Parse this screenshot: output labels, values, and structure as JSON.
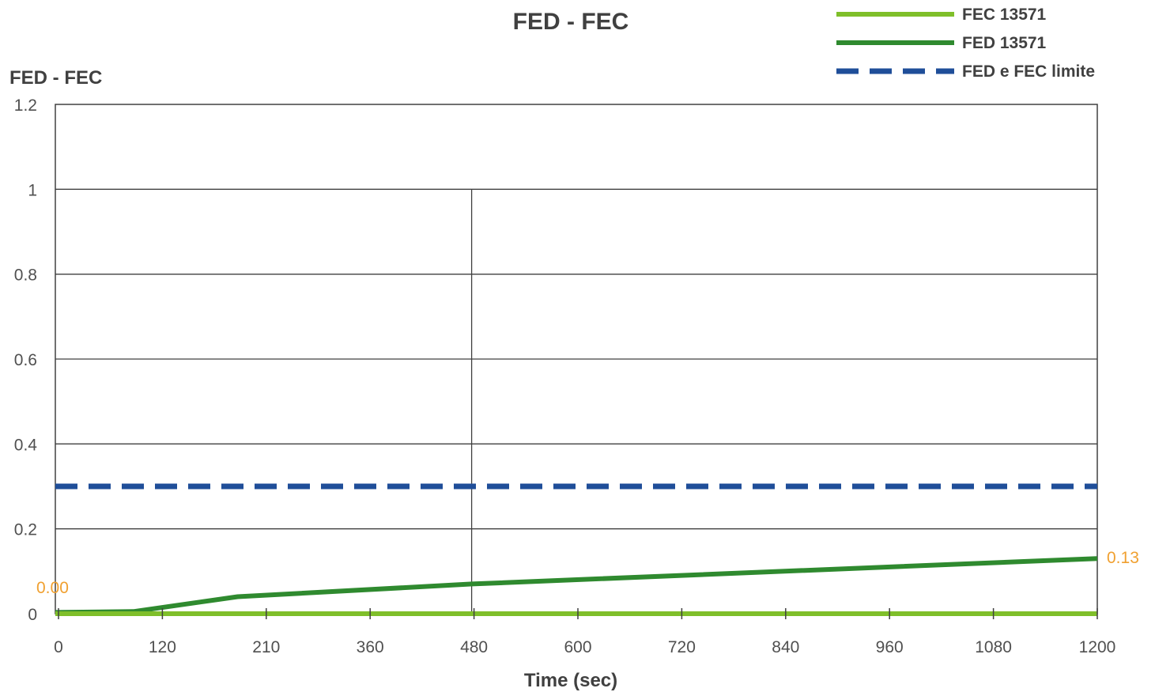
{
  "chart_data": {
    "type": "line",
    "title": "FED - FEC",
    "ylabel": "FED - FEC",
    "xlabel": "Time (sec)",
    "ylim": [
      0,
      1.2
    ],
    "yticks": [
      0,
      0.2,
      0.4,
      0.6,
      0.8,
      1,
      1.2
    ],
    "ytick_labels": [
      "0",
      "0.2",
      "0.4",
      "0.6",
      "0.8",
      "1",
      "1.2"
    ],
    "xlim": [
      0,
      1200
    ],
    "xtick_labels": [
      "0",
      "120",
      "210",
      "360",
      "480",
      "600",
      "720",
      "840",
      "960",
      "1080",
      "1200"
    ],
    "grid": true,
    "legend_position": "top-right",
    "series": [
      {
        "name": "FEC 13571",
        "color": "#7fbf2a",
        "style": "solid",
        "x": [
          0,
          1200
        ],
        "y": [
          0,
          0
        ]
      },
      {
        "name": "FED 13571",
        "color": "#2f8a2f",
        "style": "solid",
        "x": [
          0,
          90,
          210,
          480,
          1200
        ],
        "y": [
          0.003,
          0.005,
          0.04,
          0.07,
          0.13
        ]
      },
      {
        "name": "FED e FEC limite",
        "color": "#1f4e99",
        "style": "dashed",
        "x": [
          0,
          1200
        ],
        "y": [
          0.3,
          0.3
        ]
      }
    ],
    "annotations": [
      {
        "text": "0.00",
        "x": 0,
        "y": 0
      },
      {
        "text": "0.13",
        "x": 1200,
        "y": 0.13
      }
    ]
  }
}
